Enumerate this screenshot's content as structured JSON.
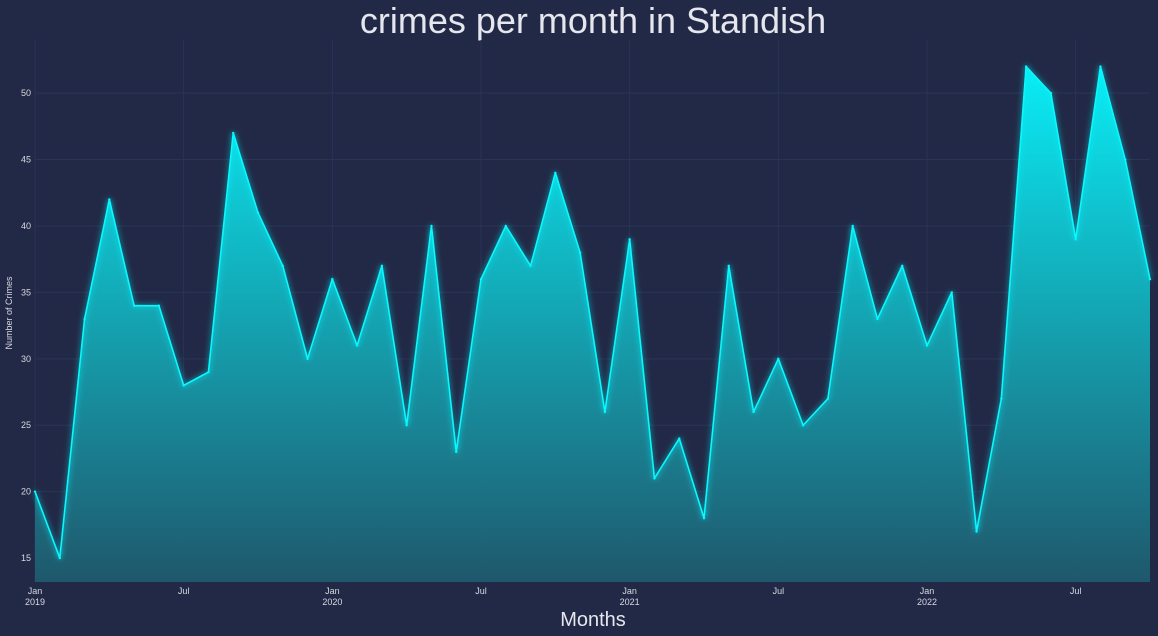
{
  "chart_data": {
    "type": "area",
    "title": "crimes per month in Standish",
    "xlabel": "Months",
    "ylabel": "Number of Crimes",
    "x": [
      "2019-01",
      "2019-02",
      "2019-03",
      "2019-04",
      "2019-05",
      "2019-06",
      "2019-07",
      "2019-08",
      "2019-09",
      "2019-10",
      "2019-11",
      "2019-12",
      "2020-01",
      "2020-02",
      "2020-03",
      "2020-04",
      "2020-05",
      "2020-06",
      "2020-07",
      "2020-08",
      "2020-09",
      "2020-10",
      "2020-11",
      "2020-12",
      "2021-01",
      "2021-02",
      "2021-03",
      "2021-04",
      "2021-05",
      "2021-06",
      "2021-07",
      "2021-08",
      "2021-09",
      "2021-10",
      "2021-11",
      "2021-12",
      "2022-01",
      "2022-02",
      "2022-03",
      "2022-04",
      "2022-05",
      "2022-06",
      "2022-07",
      "2022-08",
      "2022-09",
      "2022-10"
    ],
    "values": [
      20,
      15,
      33,
      42,
      34,
      34,
      28,
      29,
      47,
      41,
      37,
      30,
      36,
      31,
      37,
      25,
      40,
      23,
      36,
      40,
      37,
      44,
      38,
      26,
      39,
      21,
      24,
      18,
      37,
      26,
      30,
      25,
      27,
      40,
      33,
      37,
      31,
      35,
      17,
      27,
      52,
      50,
      39,
      52,
      45,
      36
    ],
    "ylim": [
      13.2,
      54
    ],
    "yticks": [
      15,
      20,
      25,
      30,
      35,
      40,
      45,
      50
    ],
    "xticks": [
      {
        "index": 0,
        "line1": "Jan",
        "line2": "2019"
      },
      {
        "index": 6,
        "line1": "Jul",
        "line2": ""
      },
      {
        "index": 12,
        "line1": "Jan",
        "line2": "2020"
      },
      {
        "index": 18,
        "line1": "Jul",
        "line2": ""
      },
      {
        "index": 24,
        "line1": "Jan",
        "line2": "2021"
      },
      {
        "index": 30,
        "line1": "Jul",
        "line2": ""
      },
      {
        "index": 36,
        "line1": "Jan",
        "line2": "2022"
      },
      {
        "index": 42,
        "line1": "Jul",
        "line2": ""
      }
    ],
    "grid": true,
    "colors": {
      "background": "#212946",
      "line": "#08f7fe",
      "fill_top": "#08f7fe",
      "fill_bottom": "#1f5a6e",
      "grid": "#2a3459"
    }
  }
}
